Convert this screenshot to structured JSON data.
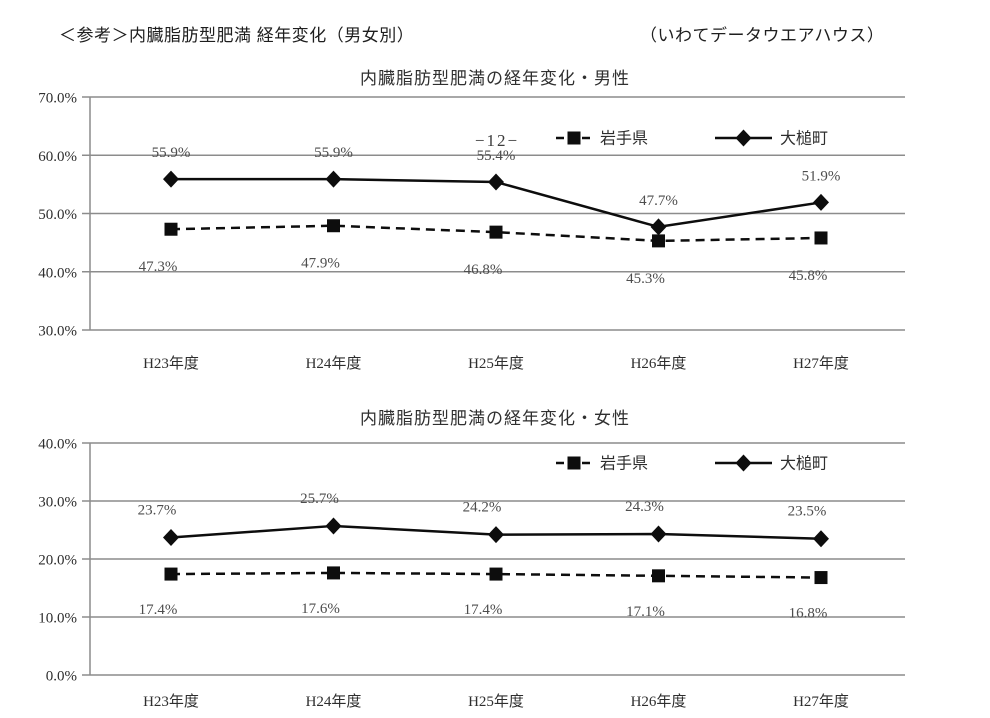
{
  "page": {
    "header_title": "＜参考＞内臓脂肪型肥満 経年変化（男女別）",
    "header_source": "（いわてデータウエアハウス）",
    "page_number": "−12−"
  },
  "colors": {
    "grid": "#8c8c8c",
    "series": "#0d0d0d",
    "text": "#2e2e2e",
    "data_label": "#4d4d4d"
  },
  "chart_data": [
    {
      "type": "line",
      "title": "内臓脂肪型肥満の経年変化・男性",
      "categories": [
        "H23年度",
        "H24年度",
        "H25年度",
        "H26年度",
        "H27年度"
      ],
      "ylim": [
        30,
        70
      ],
      "yticks": [
        70,
        60,
        50,
        40,
        30
      ],
      "ytick_labels": [
        "70.0%",
        "60.0%",
        "50.0%",
        "40.0%",
        "30.0%"
      ],
      "grid": true,
      "legend_position": "inside-top-right",
      "series": [
        {
          "name": "岩手県",
          "values": [
            47.3,
            47.9,
            46.8,
            45.3,
            45.8
          ],
          "labels": [
            "47.3%",
            "47.9%",
            "46.8%",
            "45.3%",
            "45.8%"
          ],
          "marker": "square",
          "line_style": "dashed",
          "label_side": "below"
        },
        {
          "name": "大槌町",
          "values": [
            55.9,
            55.9,
            55.4,
            47.7,
            51.9
          ],
          "labels": [
            "55.9%",
            "55.9%",
            "55.4%",
            "47.7%",
            "51.9%"
          ],
          "marker": "diamond",
          "line_style": "solid",
          "label_side": "above"
        }
      ]
    },
    {
      "type": "line",
      "title": "内臓脂肪型肥満の経年変化・女性",
      "categories": [
        "H23年度",
        "H24年度",
        "H25年度",
        "H26年度",
        "H27年度"
      ],
      "ylim": [
        0,
        40
      ],
      "yticks": [
        40,
        30,
        20,
        10,
        0
      ],
      "ytick_labels": [
        "40.0%",
        "30.0%",
        "20.0%",
        "10.0%",
        "0.0%"
      ],
      "grid": true,
      "legend_position": "inside-top-right",
      "series": [
        {
          "name": "岩手県",
          "values": [
            17.4,
            17.6,
            17.4,
            17.1,
            16.8
          ],
          "labels": [
            "17.4%",
            "17.6%",
            "17.4%",
            "17.1%",
            "16.8%"
          ],
          "marker": "square",
          "line_style": "dashed",
          "label_side": "below"
        },
        {
          "name": "大槌町",
          "values": [
            23.7,
            25.7,
            24.2,
            24.3,
            23.5
          ],
          "labels": [
            "23.7%",
            "25.7%",
            "24.2%",
            "24.3%",
            "23.5%"
          ],
          "marker": "diamond",
          "line_style": "solid",
          "label_side": "above"
        }
      ]
    }
  ]
}
